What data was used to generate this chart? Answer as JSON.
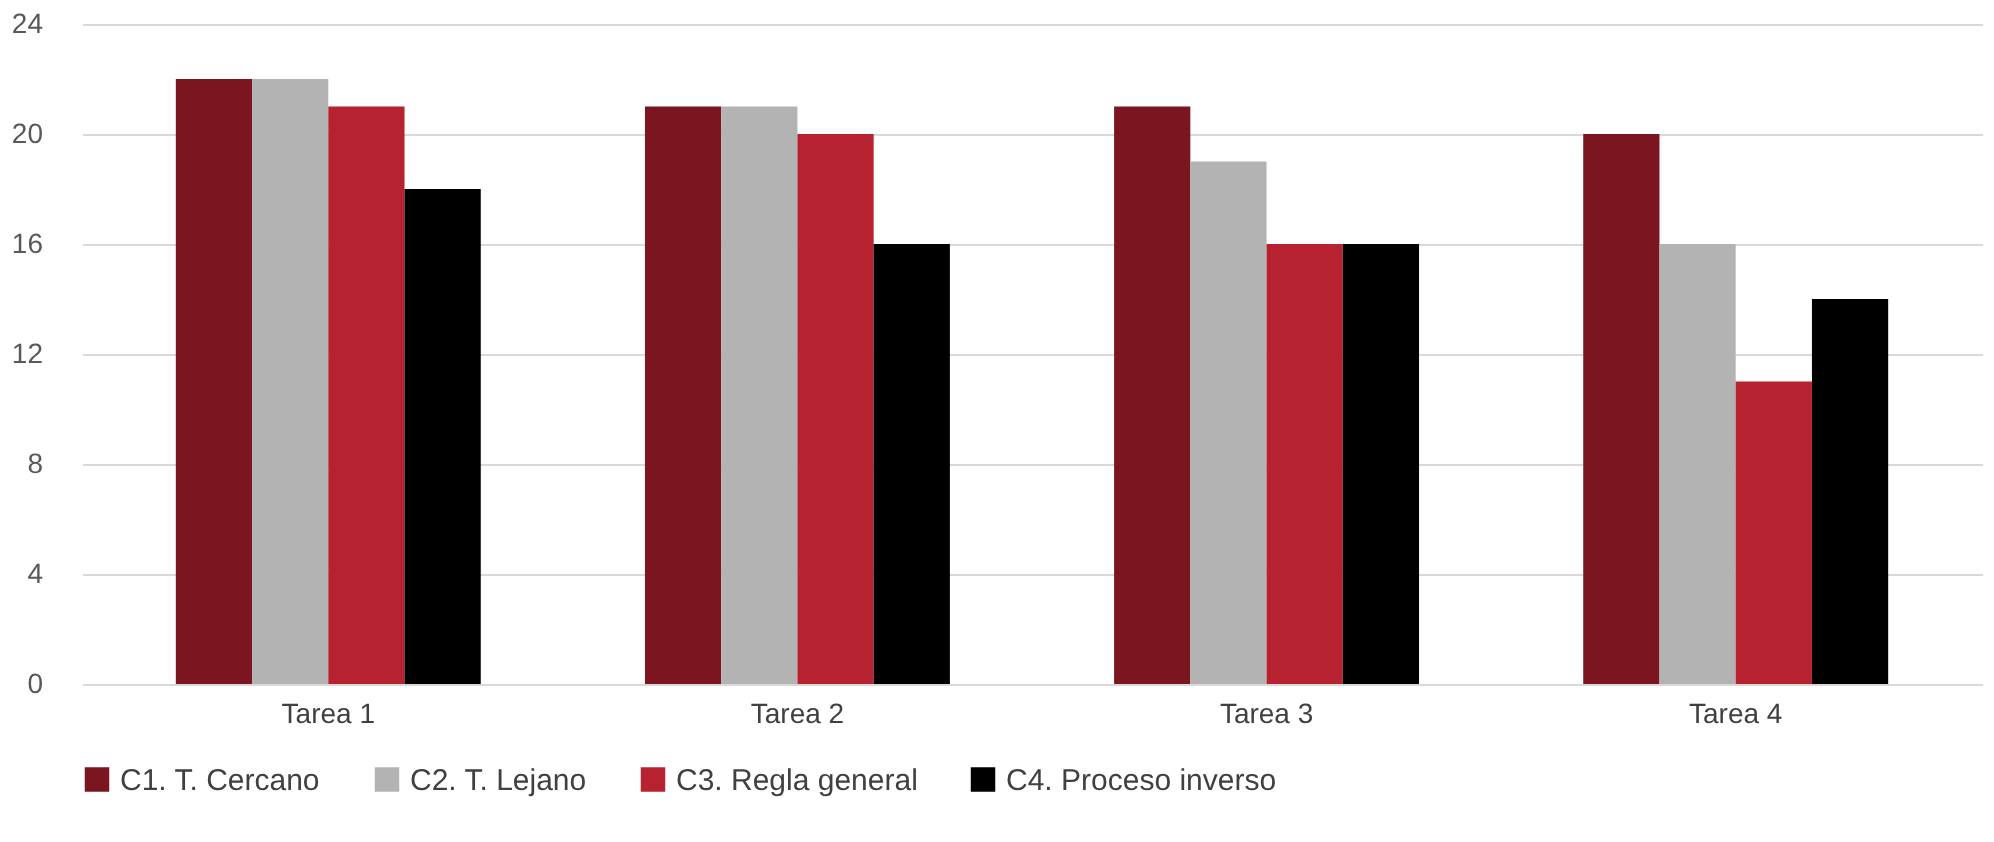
{
  "chart_data": {
    "type": "bar",
    "categories": [
      "Tarea 1",
      "Tarea 2",
      "Tarea 3",
      "Tarea 4"
    ],
    "series": [
      {
        "name": "C1. T. Cercano",
        "color": "#7b1520",
        "values": [
          22,
          21,
          21,
          20
        ]
      },
      {
        "name": "C2. T. Lejano",
        "color": "#b3b3b3",
        "values": [
          22,
          21,
          19,
          16
        ]
      },
      {
        "name": "C3. Regla general",
        "color": "#b72231",
        "values": [
          21,
          20,
          16,
          11
        ]
      },
      {
        "name": "C4. Proceso inverso",
        "color": "#000000",
        "values": [
          18,
          16,
          16,
          14
        ]
      }
    ],
    "ylim": [
      0,
      24
    ],
    "yticks": [
      0,
      4,
      8,
      12,
      16,
      20,
      24
    ],
    "grid": "y",
    "legend": "bottom"
  }
}
